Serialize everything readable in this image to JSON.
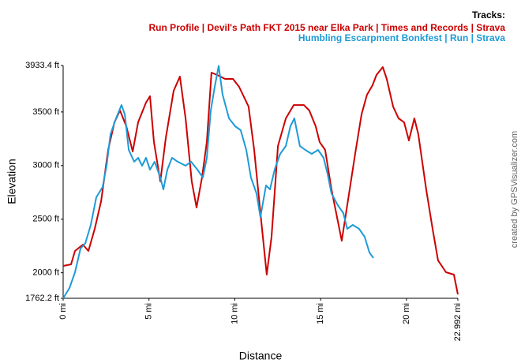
{
  "chart_data": {
    "type": "line",
    "legend_title": "Tracks:",
    "xlabel": "Distance",
    "ylabel": "Elevation",
    "credit": "created by GPSVisualizer.com",
    "xlim": [
      0,
      22.992
    ],
    "ylim": [
      1762.2,
      3933.4
    ],
    "xticks": [
      {
        "value": 0,
        "label": "0 mi"
      },
      {
        "value": 5,
        "label": "5 mi"
      },
      {
        "value": 10,
        "label": "10 mi"
      },
      {
        "value": 15,
        "label": "15 mi"
      },
      {
        "value": 20,
        "label": "20 mi"
      },
      {
        "value": 22.992,
        "label": "22.992 mi"
      }
    ],
    "yticks": [
      {
        "value": 1762.2,
        "label": "1762.2 ft"
      },
      {
        "value": 2000,
        "label": "2000 ft"
      },
      {
        "value": 2500,
        "label": "2500 ft"
      },
      {
        "value": 3000,
        "label": "3000 ft"
      },
      {
        "value": 3500,
        "label": "3500 ft"
      },
      {
        "value": 3933.4,
        "label": "3933.4 ft"
      }
    ],
    "grid": false,
    "series": [
      {
        "name": "Run Profile | Devil's Path FKT 2015 near Elka Park | Times and Records | Strava",
        "color": "#cc0000",
        "x": [
          0,
          0.46,
          0.69,
          1.15,
          1.47,
          1.84,
          2.21,
          2.62,
          2.99,
          3.31,
          3.68,
          4.05,
          4.37,
          4.83,
          5.06,
          5.29,
          5.66,
          5.98,
          6.44,
          6.8,
          7.13,
          7.49,
          7.77,
          8.09,
          8.37,
          8.64,
          8.97,
          9.43,
          9.89,
          10.25,
          10.8,
          11.13,
          11.49,
          11.86,
          12.14,
          12.51,
          12.97,
          13.43,
          14.02,
          14.34,
          14.71,
          14.94,
          15.26,
          15.63,
          16.0,
          16.23,
          16.55,
          17.01,
          17.38,
          17.7,
          18.02,
          18.25,
          18.62,
          18.85,
          19.22,
          19.54,
          19.86,
          20.14,
          20.46,
          20.69,
          21.15,
          21.52,
          21.84,
          22.3,
          22.76,
          22.99
        ],
        "values": [
          2064,
          2079,
          2204,
          2263,
          2204,
          2410,
          2668,
          3146,
          3404,
          3514,
          3367,
          3131,
          3404,
          3588,
          3647,
          3220,
          2852,
          3256,
          3698,
          3830,
          3440,
          2852,
          2609,
          2888,
          3220,
          3867,
          3845,
          3808,
          3808,
          3735,
          3550,
          3146,
          2557,
          1983,
          2336,
          3183,
          3440,
          3565,
          3565,
          3514,
          3367,
          3220,
          3146,
          2778,
          2484,
          2299,
          2631,
          3109,
          3477,
          3661,
          3749,
          3845,
          3919,
          3808,
          3550,
          3440,
          3404,
          3234,
          3440,
          3293,
          2778,
          2410,
          2116,
          2005,
          1983,
          1799
        ]
      },
      {
        "name": "Humbling Escarpment Bonkfest | Run | Strava",
        "color": "#1e9bd7",
        "x": [
          0,
          0.37,
          0.69,
          1.01,
          1.29,
          1.61,
          1.93,
          2.3,
          2.53,
          2.76,
          3.08,
          3.4,
          3.59,
          3.82,
          4.14,
          4.37,
          4.6,
          4.83,
          5.06,
          5.33,
          5.66,
          5.84,
          6.07,
          6.34,
          6.67,
          7.13,
          7.45,
          7.82,
          8.14,
          8.37,
          8.6,
          8.83,
          9.06,
          9.29,
          9.66,
          10.02,
          10.34,
          10.67,
          10.94,
          11.26,
          11.49,
          11.82,
          12.05,
          12.32,
          12.64,
          12.97,
          13.24,
          13.47,
          13.79,
          14.11,
          14.48,
          14.85,
          15.17,
          15.4,
          15.63,
          16.0,
          16.32,
          16.55,
          16.87,
          17.24,
          17.56,
          17.84,
          18.07
        ],
        "values": [
          1762,
          1858,
          2005,
          2226,
          2277,
          2447,
          2704,
          2800,
          2999,
          3293,
          3440,
          3565,
          3477,
          3146,
          3036,
          3072,
          2999,
          3072,
          2962,
          3036,
          2888,
          2778,
          2962,
          3072,
          3036,
          2999,
          3036,
          2962,
          2888,
          3072,
          3514,
          3735,
          3930,
          3661,
          3440,
          3367,
          3330,
          3146,
          2888,
          2741,
          2520,
          2815,
          2778,
          2962,
          3109,
          3183,
          3367,
          3440,
          3183,
          3146,
          3109,
          3146,
          3072,
          2925,
          2741,
          2631,
          2557,
          2410,
          2447,
          2410,
          2336,
          2189,
          2138
        ]
      }
    ]
  }
}
